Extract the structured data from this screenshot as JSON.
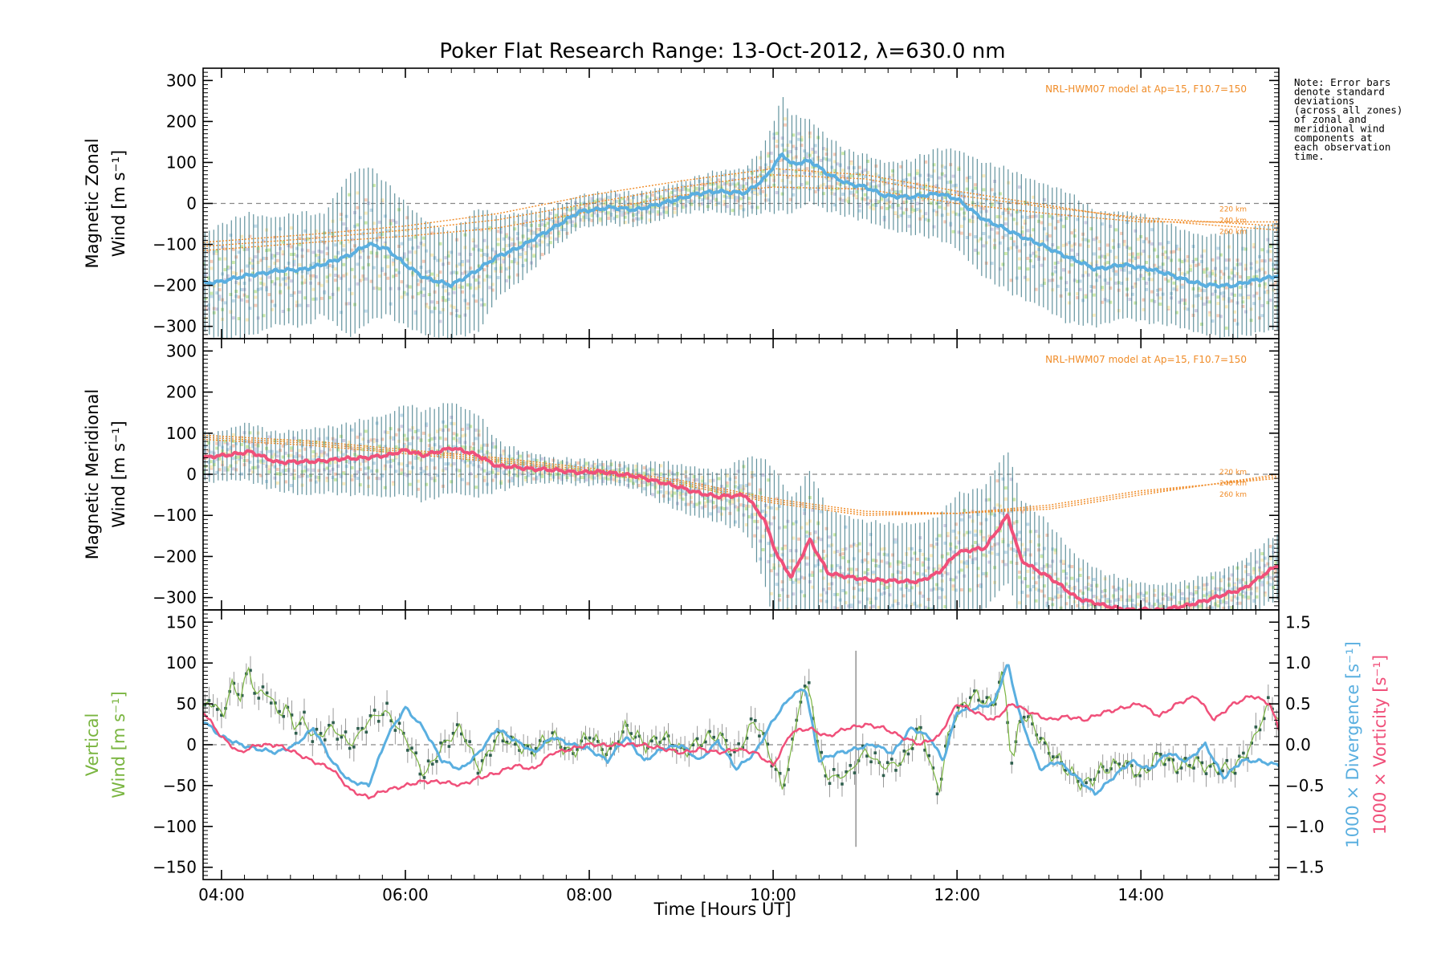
{
  "chart_data": {
    "type": "line",
    "title": "Poker Flat Research Range: 13-Oct-2012, λ=630.0 nm",
    "xlabel": "Time [Hours UT]",
    "xlim": [
      3.8,
      15.5
    ],
    "xticks": [
      "04:00",
      "06:00",
      "08:00",
      "10:00",
      "12:00",
      "14:00"
    ],
    "xtick_values": [
      4,
      6,
      8,
      10,
      12,
      14
    ],
    "note": [
      "Note: Error bars",
      "denote standard",
      "deviations",
      "(across all zones)",
      "of zonal and",
      "meridional wind",
      "components at",
      "each observation",
      "time."
    ],
    "panels": [
      {
        "name": "zonal",
        "ylabel": [
          "Magnetic Zonal",
          "Wind [m s⁻¹]"
        ],
        "ylim": [
          -330,
          330
        ],
        "yticks": [
          "300",
          "200",
          "100",
          "0",
          "−100",
          "−200",
          "−300"
        ],
        "ytick_values": [
          300,
          200,
          100,
          0,
          -100,
          -200,
          -300
        ],
        "model_label": "NRL-HWM07 model at Ap=15, F10.7=150",
        "altitude_labels": [
          "220 km",
          "240 km",
          "260 km"
        ],
        "line_color": "#5aafe0",
        "series": {
          "x": [
            3.8,
            4.0,
            4.3,
            4.6,
            4.9,
            5.1,
            5.4,
            5.6,
            5.8,
            6.0,
            6.2,
            6.5,
            6.8,
            7.0,
            7.3,
            7.6,
            7.9,
            8.2,
            8.5,
            8.8,
            9.1,
            9.4,
            9.7,
            9.9,
            10.1,
            10.2,
            10.4,
            10.6,
            10.8,
            11.0,
            11.2,
            11.5,
            11.8,
            12.0,
            12.3,
            12.6,
            12.9,
            13.2,
            13.5,
            13.8,
            14.1,
            14.4,
            14.7,
            15.0,
            15.2,
            15.5
          ],
          "y": [
            -195,
            -190,
            -175,
            -165,
            -160,
            -150,
            -125,
            -100,
            -110,
            -150,
            -180,
            -200,
            -160,
            -130,
            -100,
            -60,
            -20,
            -10,
            -15,
            0,
            20,
            30,
            25,
            60,
            120,
            95,
            105,
            70,
            50,
            40,
            20,
            15,
            25,
            10,
            -40,
            -70,
            -100,
            -130,
            -160,
            -150,
            -160,
            -180,
            -200,
            -200,
            -190,
            -175
          ]
        },
        "error_sd": [
          120,
          140,
          150,
          130,
          140,
          120,
          200,
          190,
          160,
          150,
          140,
          130,
          150,
          100,
          80,
          50,
          40,
          40,
          40,
          40,
          40,
          50,
          60,
          80,
          140,
          120,
          100,
          90,
          80,
          80,
          80,
          90,
          110,
          120,
          140,
          150,
          150,
          160,
          140,
          130,
          130,
          120,
          120,
          130,
          130,
          130
        ],
        "model_curves": [
          {
            "name": "220 km",
            "x": [
              3.8,
              5,
              6,
              7,
              8,
              9,
              10,
              11,
              12,
              13,
              14,
              15.5
            ],
            "y": [
              -115,
              -95,
              -80,
              -60,
              -20,
              20,
              40,
              35,
              0,
              -25,
              -45,
              -45
            ]
          },
          {
            "name": "240 km",
            "x": [
              3.8,
              5,
              6,
              7,
              8,
              9,
              10,
              11,
              12,
              13,
              14,
              15.5
            ],
            "y": [
              -105,
              -85,
              -65,
              -40,
              0,
              40,
              70,
              60,
              20,
              -10,
              -35,
              -55
            ]
          },
          {
            "name": "260 km",
            "x": [
              3.8,
              5,
              6,
              7,
              8,
              9,
              10,
              11,
              12,
              13,
              14,
              15.5
            ],
            "y": [
              -95,
              -75,
              -55,
              -25,
              20,
              55,
              85,
              70,
              30,
              -5,
              -40,
              -65
            ]
          }
        ]
      },
      {
        "name": "meridional",
        "ylabel": [
          "Magnetic Meridional",
          "Wind [m s⁻¹]"
        ],
        "ylim": [
          -330,
          330
        ],
        "yticks": [
          "300",
          "200",
          "100",
          "0",
          "−100",
          "−200",
          "−300"
        ],
        "ytick_values": [
          300,
          200,
          100,
          0,
          -100,
          -200,
          -300
        ],
        "model_label": "NRL-HWM07 model at Ap=15, F10.7=150",
        "altitude_labels": [
          "220 km",
          "240 km",
          "260 km"
        ],
        "line_color": "#f0507a",
        "series": {
          "x": [
            3.8,
            4.0,
            4.3,
            4.6,
            4.9,
            5.2,
            5.5,
            5.8,
            6.0,
            6.2,
            6.5,
            6.8,
            7.0,
            7.3,
            7.6,
            7.9,
            8.2,
            8.5,
            8.8,
            9.1,
            9.4,
            9.7,
            9.9,
            10.05,
            10.2,
            10.4,
            10.6,
            10.8,
            11.0,
            11.3,
            11.6,
            11.8,
            12.0,
            12.3,
            12.55,
            12.7,
            13.0,
            13.3,
            13.6,
            13.9,
            14.2,
            14.5,
            14.8,
            15.1,
            15.5
          ],
          "y": [
            40,
            45,
            55,
            30,
            30,
            35,
            40,
            45,
            60,
            45,
            65,
            45,
            20,
            15,
            10,
            5,
            5,
            -5,
            -20,
            -40,
            -55,
            -50,
            -110,
            -200,
            -250,
            -160,
            -240,
            -250,
            -255,
            -260,
            -260,
            -240,
            -190,
            -180,
            -100,
            -210,
            -250,
            -300,
            -320,
            -330,
            -330,
            -320,
            -300,
            -280,
            -220
          ]
        },
        "error_sd": [
          60,
          60,
          70,
          70,
          80,
          80,
          90,
          100,
          110,
          110,
          110,
          100,
          60,
          40,
          30,
          30,
          30,
          30,
          50,
          60,
          60,
          90,
          150,
          200,
          190,
          170,
          150,
          150,
          140,
          140,
          140,
          140,
          140,
          150,
          160,
          150,
          130,
          100,
          80,
          70,
          60,
          60,
          60,
          70,
          80
        ],
        "model_curves": [
          {
            "name": "220 km",
            "x": [
              3.8,
              5,
              6,
              7,
              8,
              9,
              10,
              11,
              12,
              13,
              14,
              15.5
            ],
            "y": [
              95,
              80,
              60,
              40,
              15,
              -15,
              -60,
              -90,
              -95,
              -85,
              -50,
              0
            ]
          },
          {
            "name": "240 km",
            "x": [
              3.8,
              5,
              6,
              7,
              8,
              9,
              10,
              11,
              12,
              13,
              14,
              15.5
            ],
            "y": [
              90,
              75,
              55,
              35,
              10,
              -20,
              -65,
              -95,
              -95,
              -80,
              -45,
              -5
            ]
          },
          {
            "name": "260 km",
            "x": [
              3.8,
              5,
              6,
              7,
              8,
              9,
              10,
              11,
              12,
              13,
              14,
              15.5
            ],
            "y": [
              85,
              70,
              50,
              30,
              5,
              -25,
              -70,
              -100,
              -95,
              -75,
              -40,
              -10
            ]
          }
        ]
      },
      {
        "name": "vertical",
        "ylabel": [
          "Vertical",
          "Wind [m s⁻¹]"
        ],
        "ylabel_color": "#7ab540",
        "ylim": [
          -165,
          165
        ],
        "yticks": [
          "150",
          "100",
          "50",
          "0",
          "−50",
          "−100",
          "−150"
        ],
        "ytick_values": [
          150,
          100,
          50,
          0,
          -50,
          -100,
          -150
        ],
        "y2lim": [
          -1.65,
          1.65
        ],
        "y2ticks": [
          "1.5",
          "1.0",
          "0.5",
          "0.0",
          "−0.5",
          "−1.0",
          "−1.5"
        ],
        "y2tick_values": [
          1.5,
          1.0,
          0.5,
          0.0,
          -0.5,
          -1.0,
          -1.5
        ],
        "y2label_divergence": "1000 × Divergence [s⁻¹]",
        "y2label_vorticity": "1000 × Vorticity [s⁻¹]",
        "divergence_color": "#5aafe0",
        "vorticity_color": "#f0507a",
        "vertical_color": "#7ab540",
        "marker_time": 10.9,
        "vertical_wind": {
          "x": [
            3.8,
            3.9,
            4.0,
            4.1,
            4.2,
            4.3,
            4.4,
            4.5,
            4.6,
            4.7,
            4.8,
            4.9,
            5.0,
            5.2,
            5.4,
            5.6,
            5.8,
            6.0,
            6.2,
            6.4,
            6.6,
            6.8,
            7.0,
            7.2,
            7.4,
            7.6,
            7.8,
            8.0,
            8.2,
            8.4,
            8.6,
            8.8,
            9.0,
            9.2,
            9.4,
            9.6,
            9.8,
            10.0,
            10.1,
            10.2,
            10.3,
            10.4,
            10.5,
            10.6,
            10.8,
            11.0,
            11.2,
            11.4,
            11.6,
            11.8,
            11.9,
            12.0,
            12.2,
            12.4,
            12.5,
            12.6,
            12.7,
            12.8,
            13.0,
            13.2,
            13.4,
            13.6,
            13.8,
            14.0,
            14.2,
            14.4,
            14.6,
            14.8,
            15.0,
            15.2,
            15.4,
            15.5
          ],
          "y": [
            40,
            55,
            30,
            75,
            60,
            90,
            55,
            70,
            40,
            45,
            20,
            30,
            10,
            20,
            0,
            30,
            40,
            10,
            -40,
            0,
            20,
            -30,
            10,
            0,
            -5,
            10,
            -10,
            10,
            -10,
            20,
            0,
            10,
            -10,
            5,
            10,
            -10,
            30,
            -20,
            -50,
            -10,
            60,
            70,
            -10,
            -40,
            -40,
            -5,
            -30,
            -20,
            20,
            -60,
            10,
            40,
            60,
            50,
            90,
            -30,
            40,
            30,
            -10,
            -30,
            -50,
            -30,
            -20,
            -40,
            -10,
            -30,
            -20,
            -30,
            -30,
            0,
            50,
            30
          ]
        },
        "divergence": {
          "x": [
            3.8,
            4.0,
            4.2,
            4.4,
            4.6,
            4.8,
            5.0,
            5.2,
            5.4,
            5.6,
            5.8,
            6.0,
            6.2,
            6.4,
            6.6,
            6.8,
            7.0,
            7.2,
            7.4,
            7.6,
            7.8,
            8.0,
            8.2,
            8.4,
            8.6,
            8.8,
            9.0,
            9.2,
            9.4,
            9.6,
            9.8,
            10.0,
            10.2,
            10.35,
            10.5,
            10.7,
            10.9,
            11.1,
            11.3,
            11.5,
            11.7,
            11.85,
            12.0,
            12.2,
            12.4,
            12.55,
            12.7,
            12.9,
            13.1,
            13.3,
            13.5,
            13.7,
            13.9,
            14.1,
            14.3,
            14.5,
            14.7,
            14.9,
            15.1,
            15.3,
            15.5
          ],
          "y": [
            0.3,
            0.1,
            0.0,
            -0.05,
            -0.1,
            0.0,
            0.2,
            -0.2,
            -0.45,
            -0.5,
            0.1,
            0.45,
            0.2,
            -0.2,
            -0.3,
            -0.1,
            0.2,
            0.05,
            -0.1,
            0.1,
            0.0,
            -0.05,
            -0.2,
            0.1,
            -0.2,
            -0.05,
            0.0,
            -0.2,
            0.05,
            -0.3,
            -0.1,
            0.3,
            0.6,
            0.7,
            -0.2,
            -0.1,
            -0.05,
            0.0,
            -0.1,
            0.2,
            0.1,
            -0.2,
            0.4,
            0.45,
            0.5,
            1.0,
            0.3,
            -0.3,
            -0.2,
            -0.4,
            -0.6,
            -0.4,
            -0.2,
            -0.3,
            -0.1,
            -0.2,
            0.0,
            -0.4,
            -0.2,
            -0.2,
            -0.25
          ]
        },
        "vorticity": {
          "x": [
            3.8,
            4.0,
            4.2,
            4.4,
            4.6,
            4.8,
            5.0,
            5.2,
            5.4,
            5.6,
            5.8,
            6.0,
            6.2,
            6.4,
            6.6,
            6.8,
            7.0,
            7.2,
            7.4,
            7.6,
            7.8,
            8.0,
            8.2,
            8.4,
            8.6,
            8.8,
            9.0,
            9.2,
            9.4,
            9.6,
            9.8,
            10.0,
            10.2,
            10.4,
            10.6,
            10.8,
            11.0,
            11.2,
            11.4,
            11.6,
            11.8,
            12.0,
            12.2,
            12.4,
            12.6,
            12.8,
            13.0,
            13.2,
            13.4,
            13.6,
            13.8,
            14.0,
            14.2,
            14.4,
            14.6,
            14.8,
            15.0,
            15.2,
            15.4,
            15.5
          ],
          "y": [
            0.4,
            0.1,
            -0.1,
            0.0,
            0.0,
            -0.1,
            -0.2,
            -0.3,
            -0.55,
            -0.65,
            -0.55,
            -0.5,
            -0.45,
            -0.45,
            -0.5,
            -0.4,
            -0.35,
            -0.25,
            -0.3,
            -0.1,
            -0.05,
            0.0,
            0.0,
            0.0,
            0.0,
            -0.05,
            -0.1,
            -0.05,
            -0.1,
            -0.05,
            -0.1,
            -0.25,
            0.15,
            0.2,
            0.1,
            0.2,
            0.25,
            0.2,
            0.1,
            0.0,
            0.1,
            0.5,
            0.4,
            0.3,
            0.5,
            0.4,
            0.3,
            0.35,
            0.3,
            0.4,
            0.45,
            0.5,
            0.35,
            0.5,
            0.6,
            0.3,
            0.5,
            0.6,
            0.5,
            0.2
          ]
        }
      }
    ]
  }
}
